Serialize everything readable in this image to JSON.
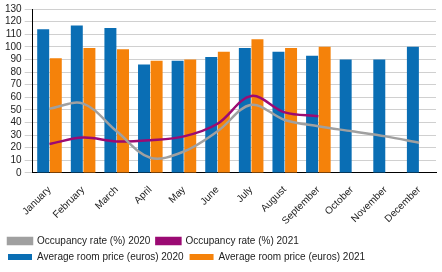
{
  "chart_data": {
    "type": "bar",
    "categories": [
      "January",
      "February",
      "March",
      "April",
      "May",
      "June",
      "July",
      "August",
      "September",
      "October",
      "November",
      "December"
    ],
    "series": [
      {
        "name": "Average room price (euros) 2020",
        "type": "bar",
        "color": "#0a6eb4",
        "values": [
          114,
          117,
          115,
          86,
          89,
          92,
          99,
          96,
          93,
          90,
          90,
          100
        ]
      },
      {
        "name": "Average room price (euros) 2021",
        "type": "bar",
        "color": "#f5820a",
        "values": [
          91,
          99,
          98,
          89,
          90,
          96,
          106,
          99,
          100,
          null,
          null,
          null
        ]
      },
      {
        "name": "Occupancy rate (%) 2020",
        "type": "line",
        "color": "#a0a0a0",
        "values": [
          51,
          55,
          33,
          12,
          17,
          33,
          54,
          42,
          37,
          33,
          29,
          24
        ]
      },
      {
        "name": "Occupancy rate (%) 2021",
        "type": "line",
        "color": "#9b0a73",
        "values": [
          23,
          28,
          25,
          26,
          29,
          39,
          61,
          48,
          45,
          null,
          null,
          null
        ]
      }
    ],
    "ylim": [
      0,
      130
    ],
    "yticks": [
      0,
      10,
      20,
      30,
      40,
      50,
      60,
      70,
      80,
      90,
      100,
      110,
      120,
      130
    ],
    "grid": true,
    "legend": "bottom"
  }
}
